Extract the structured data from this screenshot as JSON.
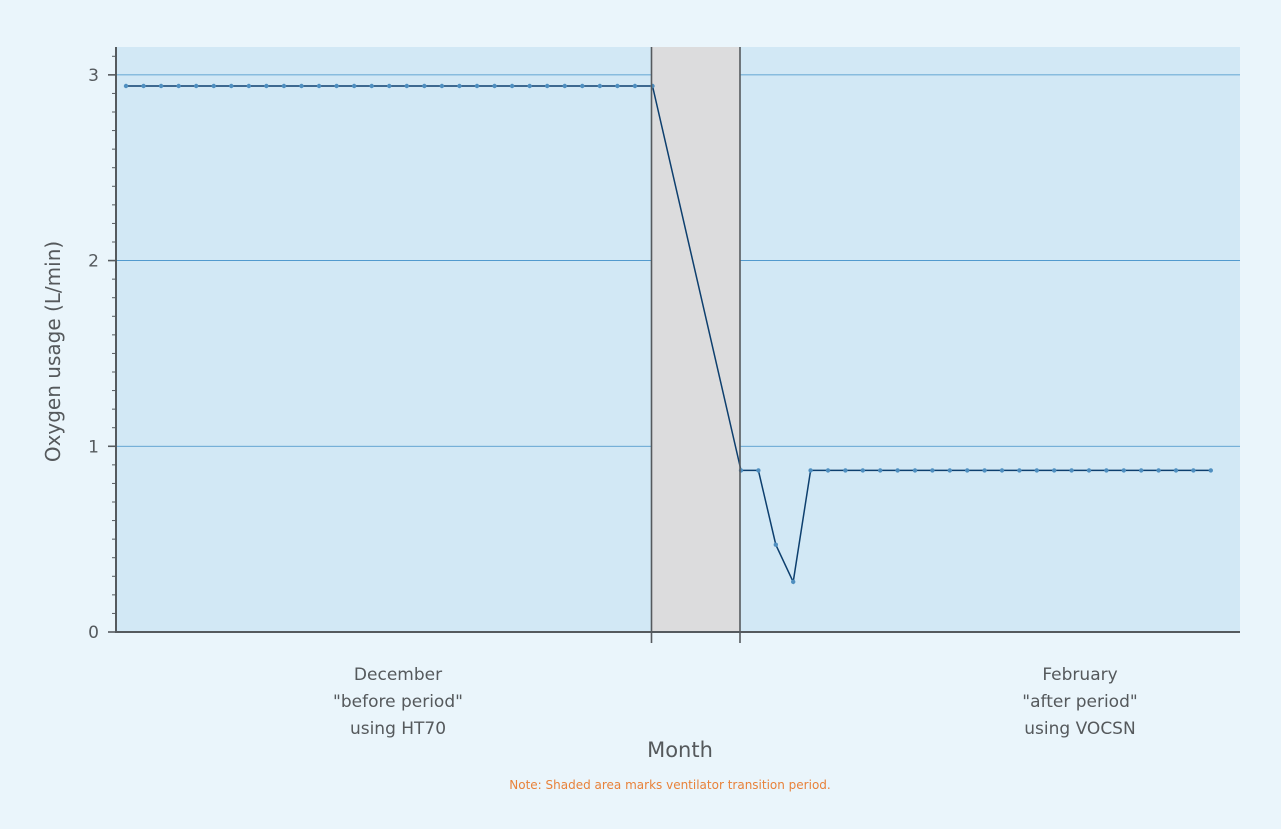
{
  "chart_data": {
    "type": "line",
    "ylabel": "Oxygen usage (L/min)",
    "xlabel": "Month",
    "ylim": [
      0,
      3.15
    ],
    "y_ticks": [
      0,
      1,
      2,
      3
    ],
    "grid": true,
    "note": "Note: Shaded area marks ventilator transition period.",
    "periods": [
      {
        "name": "December",
        "label_lines": [
          "December",
          "\"before period\"",
          "using HT70"
        ],
        "device": "HT70",
        "days": 31
      },
      {
        "name": "transition",
        "shaded": true,
        "days": 5
      },
      {
        "name": "February",
        "label_lines": [
          "February",
          "\"after period\"",
          "using VOCSN"
        ],
        "device": "VOCSN",
        "days": 28
      }
    ],
    "series": [
      {
        "before_values": [
          2.94,
          2.94,
          2.94,
          2.94,
          2.94,
          2.94,
          2.94,
          2.94,
          2.94,
          2.94,
          2.94,
          2.94,
          2.94,
          2.94,
          2.94,
          2.94,
          2.94,
          2.94,
          2.94,
          2.94,
          2.94,
          2.94,
          2.94,
          2.94,
          2.94,
          2.94,
          2.94,
          2.94,
          2.94,
          2.94,
          2.94
        ],
        "after_values": [
          0.87,
          0.87,
          0.47,
          0.27,
          0.87,
          0.87,
          0.87,
          0.87,
          0.87,
          0.87,
          0.87,
          0.87,
          0.87,
          0.87,
          0.87,
          0.87,
          0.87,
          0.87,
          0.87,
          0.87,
          0.87,
          0.87,
          0.87,
          0.87,
          0.87,
          0.87,
          0.87,
          0.87
        ]
      }
    ],
    "colors": {
      "page_background": "#eaf5fb",
      "plot_background": "#d2e8f5",
      "transition_shade": "#dcdcdd",
      "line": "#0d3f6e",
      "marker": "#4f8fc0",
      "gridline": "#3f8fc8",
      "axis": "#555a5e",
      "note": "#e8823a"
    }
  }
}
